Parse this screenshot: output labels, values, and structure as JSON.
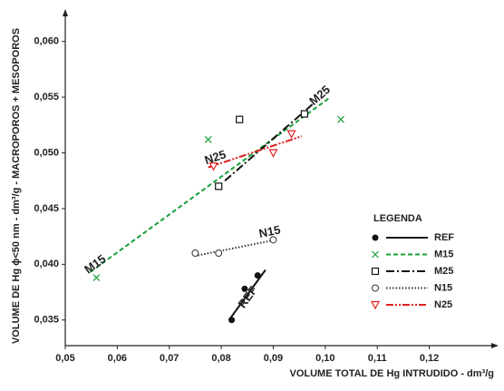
{
  "chart_data": {
    "type": "scatter",
    "x_label": "VOLUME TOTAL DE Hg INTRUDIDO - dm³/g",
    "y_label": "VOLUME DE Hg ϕ<50 nm - dm³/g - MACROPOROS + MESOPOROS",
    "legend_title": "LEGENDA",
    "legend_position": "right",
    "xlim": [
      0.05,
      0.1335
    ],
    "ylim": [
      0.0327,
      0.0625
    ],
    "xticks": [
      {
        "value": 0.05,
        "label": "0,05"
      },
      {
        "value": 0.06,
        "label": "0,06"
      },
      {
        "value": 0.07,
        "label": "0,07"
      },
      {
        "value": 0.08,
        "label": "0,08"
      },
      {
        "value": 0.09,
        "label": "0,09"
      },
      {
        "value": 0.1,
        "label": "0,10"
      },
      {
        "value": 0.11,
        "label": "0,11"
      },
      {
        "value": 0.12,
        "label": "0,12"
      }
    ],
    "yticks": [
      {
        "value": 0.035,
        "label": "0,035"
      },
      {
        "value": 0.04,
        "label": "0,040"
      },
      {
        "value": 0.045,
        "label": "0,045"
      },
      {
        "value": 0.05,
        "label": "0,050"
      },
      {
        "value": 0.055,
        "label": "0,055"
      },
      {
        "value": 0.06,
        "label": "0,060"
      }
    ],
    "series": [
      {
        "name": "REF",
        "color": "#111111",
        "marker": "filled-circle",
        "linestyle": "solid",
        "x": [
          0.082,
          0.0845,
          0.087
        ],
        "values": [
          0.035,
          0.0378,
          0.039
        ],
        "line": {
          "x": [
            0.0815,
            0.0885
          ],
          "values": [
            0.035,
            0.0395
          ]
        }
      },
      {
        "name": "M15",
        "color": "#1a9e3a",
        "marker": "cross",
        "linestyle": "dashed",
        "x": [
          0.056,
          0.0775,
          0.103
        ],
        "values": [
          0.0388,
          0.0512,
          0.053
        ],
        "line": {
          "x": [
            0.0548,
            0.1007
          ],
          "values": [
            0.0393,
            0.0549
          ]
        }
      },
      {
        "name": "M25",
        "color": "#111111",
        "marker": "square",
        "linestyle": "dashdot",
        "x": [
          0.0795,
          0.0835,
          0.096
        ],
        "values": [
          0.047,
          0.053,
          0.0535
        ],
        "line": {
          "x": [
            0.0807,
            0.0979
          ],
          "values": [
            0.0475,
            0.0545
          ]
        }
      },
      {
        "name": "N15",
        "color": "#333333",
        "marker": "circle",
        "linestyle": "dotted",
        "x": [
          0.075,
          0.0795,
          0.09
        ],
        "values": [
          0.041,
          0.041,
          0.0422
        ],
        "line": {
          "x": [
            0.0755,
            0.0905
          ],
          "values": [
            0.0408,
            0.0422
          ]
        }
      },
      {
        "name": "N25",
        "color": "#e02020",
        "marker": "triangle-down",
        "linestyle": "dashdotdot",
        "x": [
          0.0785,
          0.09,
          0.0935
        ],
        "values": [
          0.0488,
          0.05,
          0.0517
        ],
        "line": {
          "x": [
            0.0775,
            0.0955
          ],
          "values": [
            0.0487,
            0.0515
          ]
        }
      }
    ]
  }
}
